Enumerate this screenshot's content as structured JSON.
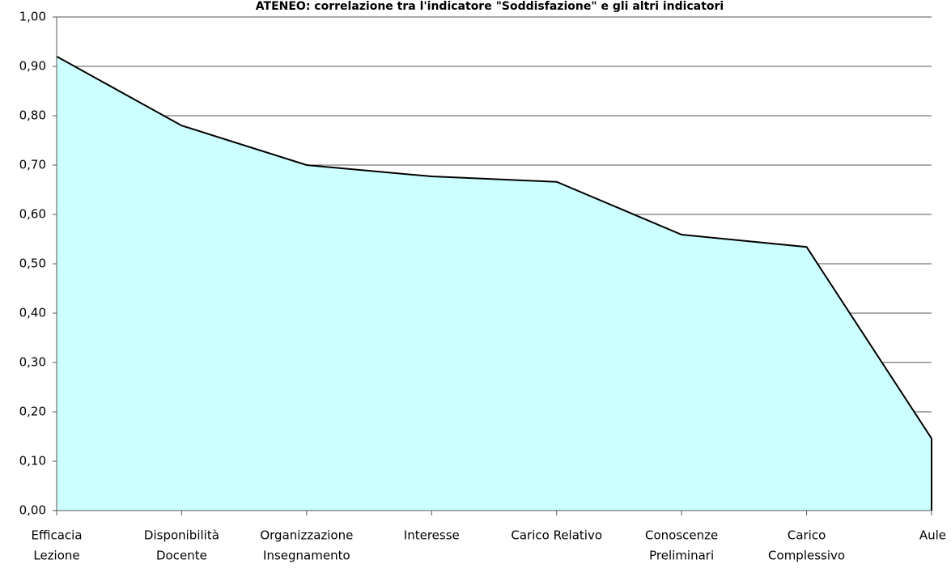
{
  "chart_data": {
    "type": "area",
    "title": "ATENEO: correlazione tra l'indicatore \"Soddisfazione\" e gli altri indicatori",
    "categories": [
      [
        "Efficacia",
        "Lezione"
      ],
      [
        "Disponibilità",
        "Docente"
      ],
      [
        "Organizzazione",
        "Insegnamento"
      ],
      [
        "Interesse"
      ],
      [
        "Carico Relativo"
      ],
      [
        "Conoscenze",
        "Preliminari"
      ],
      [
        "Carico",
        "Complessivo"
      ],
      [
        "Aule"
      ]
    ],
    "values": [
      0.92,
      0.78,
      0.7,
      0.677,
      0.666,
      0.559,
      0.534,
      0.146
    ],
    "color": "#ccffff",
    "line_color": "#000000",
    "ylim": [
      0,
      1
    ],
    "yticks": [
      {
        "value": 0,
        "label": "0,00"
      },
      {
        "value": 0.1,
        "label": "0,10"
      },
      {
        "value": 0.2,
        "label": "0,20"
      },
      {
        "value": 0.3,
        "label": "0,30"
      },
      {
        "value": 0.4,
        "label": "0,40"
      },
      {
        "value": 0.5,
        "label": "0,50"
      },
      {
        "value": 0.6,
        "label": "0,60"
      },
      {
        "value": 0.7,
        "label": "0,70"
      },
      {
        "value": 0.8,
        "label": "0,80"
      },
      {
        "value": 0.9,
        "label": "0,90"
      },
      {
        "value": 1,
        "label": "1,00"
      }
    ],
    "grid": true
  }
}
